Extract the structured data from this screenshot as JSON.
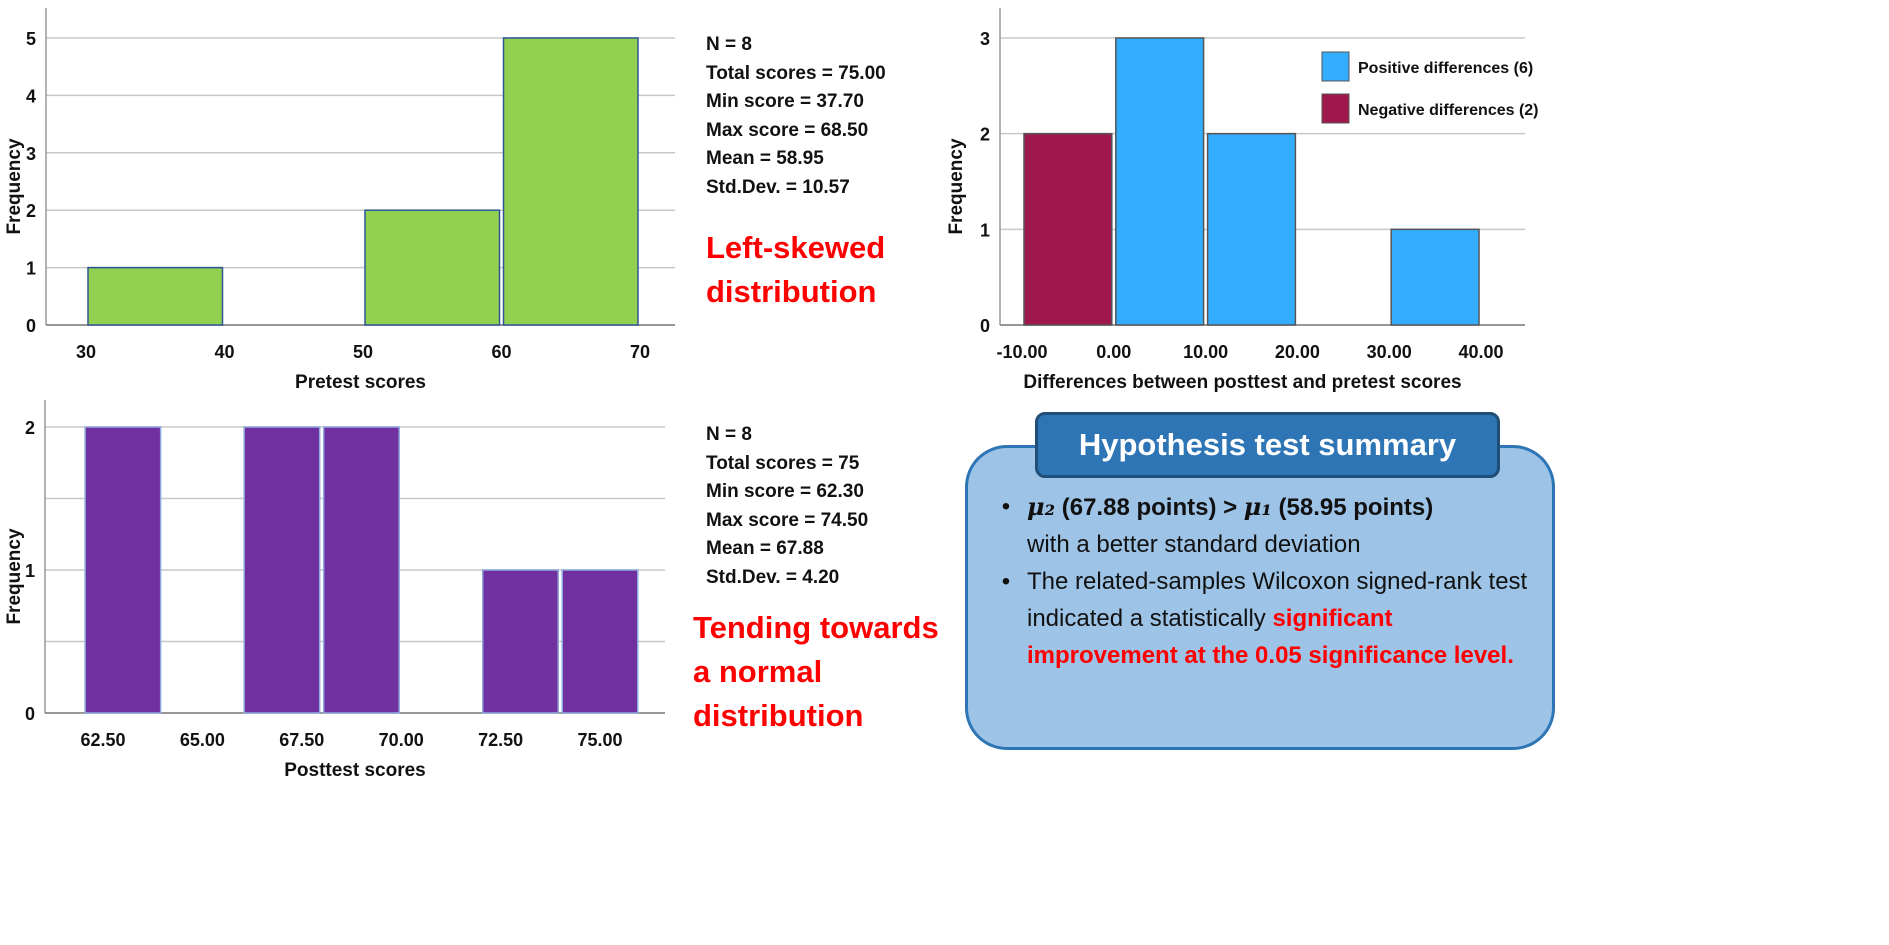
{
  "chart_data": [
    {
      "type": "bar",
      "xlabel": "Pretest scores",
      "ylabel": "Frequency",
      "xticks": [
        30,
        40,
        50,
        60,
        70
      ],
      "xlim": [
        30,
        70
      ],
      "ylim": [
        0,
        5
      ],
      "yticks": [
        0,
        1,
        2,
        3,
        4,
        5
      ],
      "grid": true,
      "bins": [
        {
          "start": 30,
          "end": 40,
          "value": 1
        },
        {
          "start": 50,
          "end": 60,
          "value": 2
        },
        {
          "start": 60,
          "end": 70,
          "value": 5
        }
      ],
      "color": "#92d050"
    },
    {
      "type": "bar",
      "xlabel": "Posttest scores",
      "ylabel": "Frequency",
      "xticks": [
        "62.50",
        "65.00",
        "67.50",
        "70.00",
        "72.50",
        "75.00"
      ],
      "ylim": [
        0,
        2
      ],
      "yticks": [
        0,
        1,
        2
      ],
      "grid": true,
      "bins": [
        {
          "start": 62,
          "end": 64,
          "value": 2
        },
        {
          "start": 66,
          "end": 68,
          "value": 2
        },
        {
          "start": 68,
          "end": 70,
          "value": 2
        },
        {
          "start": 72,
          "end": 74,
          "value": 1
        },
        {
          "start": 74,
          "end": 76,
          "value": 1
        }
      ],
      "color": "#7030a0"
    },
    {
      "type": "bar",
      "xlabel": "Differences between posttest and pretest scores",
      "ylabel": "Frequency",
      "xticks": [
        "-10.00",
        "0.00",
        "10.00",
        "20.00",
        "30.00",
        "40.00"
      ],
      "xlim": [
        -10,
        40
      ],
      "ylim": [
        0,
        3
      ],
      "yticks": [
        0,
        1,
        2,
        3
      ],
      "grid": true,
      "legend_position": "top-right",
      "series": [
        {
          "name": "Positive differences (6)",
          "color": "#33adff",
          "bins": [
            {
              "start": 0,
              "end": 10,
              "value": 3
            },
            {
              "start": 10,
              "end": 20,
              "value": 2
            },
            {
              "start": 30,
              "end": 40,
              "value": 1
            }
          ]
        },
        {
          "name": "Negative differences (2)",
          "color": "#9e174d",
          "bins": [
            {
              "start": -10,
              "end": 0,
              "value": 2
            }
          ]
        }
      ]
    }
  ],
  "pretest_stats": [
    "N = 8",
    "Total scores = 75.00",
    "Min score = 37.70",
    "Max score = 68.50",
    "Mean = 58.95",
    "Std.Dev. = 10.57"
  ],
  "pretest_note": [
    "Left-skewed",
    "distribution"
  ],
  "posttest_stats": [
    "N = 8",
    "Total scores = 75",
    "Min score = 62.30",
    "Max score = 74.50",
    "Mean = 67.88",
    "Std.Dev. = 4.20"
  ],
  "posttest_note": [
    "Tending towards",
    "a normal",
    "distribution"
  ],
  "summary": {
    "title": "Hypothesis test summary",
    "bullet1": {
      "mu2": "μ₂",
      "part1": " (67.88 points) > ",
      "mu1": "μ₁",
      "part2": " (58.95 points)",
      "part3": "with a better standard deviation"
    },
    "bullet2": {
      "text": "The related-samples Wilcoxon signed-rank test indicated a statistically ",
      "highlight": "significant improvement at the 0.05 significance level."
    }
  }
}
